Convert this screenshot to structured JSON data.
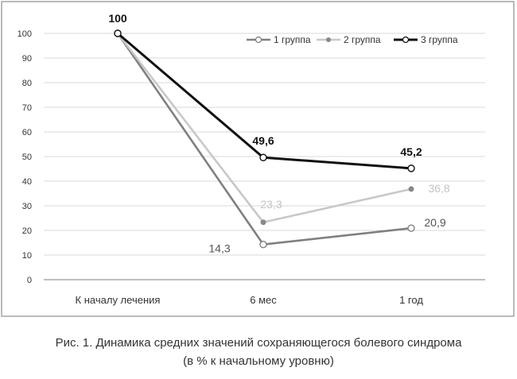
{
  "chart_data": {
    "type": "line",
    "categories": [
      "К началу лечения",
      "6 мес",
      "1 год"
    ],
    "ylim": [
      0,
      100
    ],
    "yticks": [
      0,
      10,
      20,
      30,
      40,
      50,
      60,
      70,
      80,
      90,
      100
    ],
    "grid": true,
    "legend_position": "top-right",
    "series": [
      {
        "name": "1 группа",
        "values": [
          100,
          14.3,
          20.9
        ],
        "color": "#808080",
        "marker": "open-circle",
        "labels": [
          "",
          "14,3",
          "20,9"
        ],
        "label_color": "#555555",
        "label_bold": false
      },
      {
        "name": "2 группа",
        "values": [
          100,
          23.3,
          36.8
        ],
        "color": "#c8c8c8",
        "marker": "filled-dot",
        "labels": [
          "",
          "23,3",
          "36,8"
        ],
        "label_color": "#c4c4c4",
        "label_bold": false
      },
      {
        "name": "3 группа",
        "values": [
          100,
          49.6,
          45.2
        ],
        "color": "#111111",
        "marker": "open-circle",
        "labels": [
          "100",
          "49,6",
          "45,2"
        ],
        "label_color": "#111111",
        "label_bold": true
      }
    ]
  },
  "caption": {
    "line1": "Рис. 1. Динамика средних значений сохраняющегося болевого синдрома",
    "line2": "(в % к начальному уровню)"
  }
}
